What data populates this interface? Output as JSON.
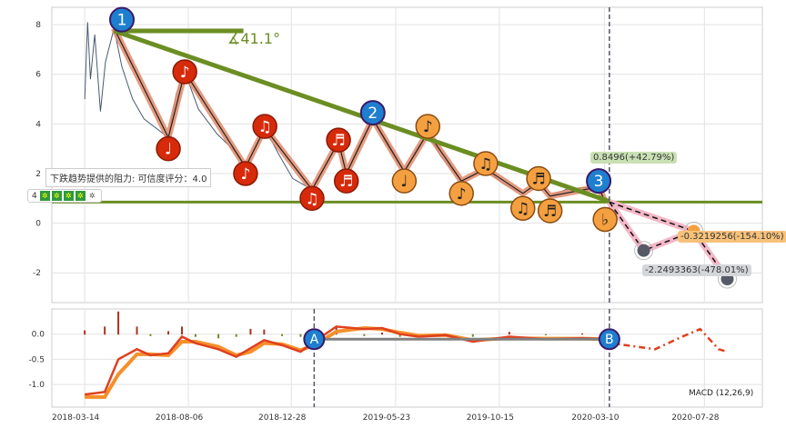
{
  "chart_data": [
    {
      "type": "line",
      "panel": "price",
      "xlim": [
        "2018-01-27",
        "2020-10-17"
      ],
      "ylim": [
        -3.2,
        8.7
      ],
      "yticks": [
        -2,
        0,
        2,
        4,
        6,
        8
      ],
      "xticks": [
        "2018-03-14",
        "2018-08-06",
        "2018-12-28",
        "2019-05-23",
        "2019-10-15",
        "2020-03-10",
        "2020-07-28"
      ],
      "grid": true,
      "colors": {
        "price": "#4a5a70",
        "wave": "#e08a6a",
        "trend": "#6b8e23",
        "red_marker": "#d62a0a",
        "orange_marker": "#f5a040",
        "number_marker": "#1e7fd0",
        "projection": "#f4b8c8"
      },
      "price": [
        [
          "2018-03-14",
          5.0
        ],
        [
          "2018-03-18",
          8.1
        ],
        [
          "2018-03-22",
          5.8
        ],
        [
          "2018-03-28",
          7.6
        ],
        [
          "2018-04-05",
          4.5
        ],
        [
          "2018-04-12",
          6.5
        ],
        [
          "2018-04-24",
          7.85
        ],
        [
          "2018-05-05",
          6.3
        ],
        [
          "2018-05-20",
          5.0
        ],
        [
          "2018-06-05",
          4.2
        ],
        [
          "2018-07-09",
          3.45
        ],
        [
          "2018-07-20",
          5.2
        ],
        [
          "2018-08-01",
          6.1
        ],
        [
          "2018-08-20",
          4.6
        ],
        [
          "2018-09-15",
          3.6
        ],
        [
          "2018-10-10",
          2.9
        ],
        [
          "2018-10-25",
          2.26
        ],
        [
          "2018-11-10",
          3.2
        ],
        [
          "2018-11-21",
          3.83
        ],
        [
          "2018-12-10",
          2.8
        ],
        [
          "2018-12-30",
          1.8
        ],
        [
          "2019-01-26",
          1.35
        ],
        [
          "2019-02-15",
          2.4
        ],
        [
          "2019-03-04",
          3.28
        ],
        [
          "2019-03-15",
          2.0
        ],
        [
          "2019-04-01",
          3.1
        ],
        [
          "2019-04-21",
          4.2
        ],
        [
          "2019-05-10",
          3.2
        ],
        [
          "2019-06-04",
          2.08
        ],
        [
          "2019-06-20",
          2.9
        ],
        [
          "2019-07-07",
          3.65
        ],
        [
          "2019-07-25",
          2.7
        ],
        [
          "2019-08-23",
          1.7
        ],
        [
          "2019-09-26",
          2.19
        ],
        [
          "2019-10-20",
          1.6
        ],
        [
          "2019-11-17",
          1.2
        ],
        [
          "2019-12-09",
          1.64
        ],
        [
          "2019-12-25",
          1.09
        ],
        [
          "2020-01-20",
          1.4
        ],
        [
          "2020-03-02",
          1.46
        ],
        [
          "2020-03-11",
          0.85
        ]
      ],
      "wave": [
        [
          "2018-04-24",
          7.85
        ],
        [
          "2018-07-09",
          3.45
        ],
        [
          "2018-08-01",
          6.1
        ],
        [
          "2018-10-25",
          2.26
        ],
        [
          "2018-11-21",
          3.83
        ],
        [
          "2019-01-26",
          1.35
        ],
        [
          "2019-03-04",
          3.28
        ],
        [
          "2019-03-15",
          2.0
        ],
        [
          "2019-04-21",
          4.2
        ],
        [
          "2019-06-04",
          2.08
        ],
        [
          "2019-07-07",
          3.65
        ],
        [
          "2019-08-23",
          1.7
        ],
        [
          "2019-09-26",
          2.19
        ],
        [
          "2019-11-17",
          1.2
        ],
        [
          "2019-12-09",
          1.64
        ],
        [
          "2019-12-25",
          1.09
        ],
        [
          "2020-03-02",
          1.46
        ],
        [
          "2020-03-11",
          0.85
        ]
      ],
      "note_markers": [
        {
          "date": "2018-07-09",
          "value": 3.0,
          "symbol": "♩",
          "color": "red"
        },
        {
          "date": "2018-08-01",
          "value": 6.1,
          "symbol": "♪",
          "color": "red"
        },
        {
          "date": "2018-10-25",
          "value": 2.0,
          "symbol": "♪",
          "color": "red"
        },
        {
          "date": "2018-11-21",
          "value": 3.9,
          "symbol": "♫",
          "color": "red"
        },
        {
          "date": "2019-01-26",
          "value": 1.0,
          "symbol": "♫",
          "color": "red"
        },
        {
          "date": "2019-03-04",
          "value": 3.35,
          "symbol": "♬",
          "color": "red"
        },
        {
          "date": "2019-03-15",
          "value": 1.7,
          "symbol": "♬",
          "color": "red"
        },
        {
          "date": "2019-06-04",
          "value": 1.7,
          "symbol": "♩",
          "color": "orange"
        },
        {
          "date": "2019-07-07",
          "value": 3.9,
          "symbol": "♪",
          "color": "orange"
        },
        {
          "date": "2019-08-23",
          "value": 1.2,
          "symbol": "♪",
          "color": "orange"
        },
        {
          "date": "2019-09-26",
          "value": 2.4,
          "symbol": "♫",
          "color": "orange"
        },
        {
          "date": "2019-11-17",
          "value": 0.6,
          "symbol": "♫",
          "color": "orange"
        },
        {
          "date": "2019-12-09",
          "value": 1.8,
          "symbol": "♬",
          "color": "orange"
        },
        {
          "date": "2019-12-25",
          "value": 0.5,
          "symbol": "♬",
          "color": "orange"
        },
        {
          "date": "2020-03-11",
          "value": 0.15,
          "symbol": "♭",
          "color": "orange"
        }
      ],
      "number_markers": [
        {
          "label": "1",
          "date": "2018-05-05",
          "value": 8.2
        },
        {
          "label": "2",
          "date": "2019-04-21",
          "value": 4.45
        },
        {
          "label": "3",
          "date": "2020-03-02",
          "value": 1.7
        }
      ],
      "trend_lines": [
        {
          "name": "resistance",
          "from": [
            "2018-04-24",
            7.75
          ],
          "to": [
            "2020-03-20",
            0.85
          ]
        },
        {
          "name": "angle-base",
          "from": [
            "2018-04-24",
            7.75
          ],
          "to": [
            "2018-10-22",
            7.75
          ]
        },
        {
          "name": "support",
          "from": [
            "2018-01-27",
            0.85
          ],
          "to": [
            "2020-10-17",
            0.85
          ]
        }
      ],
      "angle_label": "∡41.1°",
      "vline": "2020-03-17",
      "projection": [
        [
          "2020-03-17",
          0.85
        ],
        [
          "2020-05-04",
          -1.1
        ],
        [
          "2020-07-13",
          -0.32
        ],
        [
          "2020-08-29",
          -2.25
        ]
      ],
      "projection_alt": [
        [
          "2020-03-17",
          0.85
        ],
        [
          "2020-07-13",
          -0.32
        ]
      ],
      "annotations": [
        {
          "text": "0.8496(+42.79%)",
          "bg": "#c9e0b4"
        },
        {
          "text": "-0.3219256(-154.10%)",
          "bg": "#f6c27a"
        },
        {
          "text": "-2.2493363(-478.01%)",
          "bg": "#d4d6da"
        }
      ],
      "tooltip": "下跌趋势提供的阻力: 可信度评分：4.0",
      "score": {
        "value": "4",
        "filled": 4,
        "total": 5
      }
    },
    {
      "type": "line",
      "panel": "macd",
      "title": "MACD (12,26,9)",
      "ylim": [
        -1.45,
        0.5
      ],
      "yticks": [
        -1.0,
        -0.5,
        0.0
      ],
      "dif": [
        [
          "2018-03-14",
          -1.2
        ],
        [
          "2018-04-11",
          -1.15
        ],
        [
          "2018-04-30",
          -0.5
        ],
        [
          "2018-05-26",
          -0.3
        ],
        [
          "2018-06-14",
          -0.42
        ],
        [
          "2018-07-09",
          -0.38
        ],
        [
          "2018-07-28",
          -0.05
        ],
        [
          "2018-08-16",
          -0.18
        ],
        [
          "2018-09-17",
          -0.3
        ],
        [
          "2018-10-12",
          -0.45
        ],
        [
          "2018-11-01",
          -0.28
        ],
        [
          "2018-11-20",
          -0.12
        ],
        [
          "2018-12-15",
          -0.22
        ],
        [
          "2019-01-10",
          -0.35
        ],
        [
          "2019-01-29",
          -0.15
        ],
        [
          "2019-03-01",
          0.15
        ],
        [
          "2019-04-09",
          0.1
        ],
        [
          "2019-05-04",
          0.12
        ],
        [
          "2019-05-29",
          0.0
        ],
        [
          "2019-06-24",
          -0.05
        ],
        [
          "2019-08-01",
          -0.02
        ],
        [
          "2019-09-08",
          -0.15
        ],
        [
          "2019-10-29",
          -0.05
        ],
        [
          "2019-12-19",
          -0.1
        ],
        [
          "2020-02-08",
          -0.08
        ],
        [
          "2020-03-17",
          -0.1
        ]
      ],
      "dea": [
        [
          "2018-03-14",
          -1.25
        ],
        [
          "2018-04-11",
          -1.25
        ],
        [
          "2018-04-30",
          -0.8
        ],
        [
          "2018-05-26",
          -0.4
        ],
        [
          "2018-06-14",
          -0.4
        ],
        [
          "2018-07-09",
          -0.42
        ],
        [
          "2018-07-28",
          -0.15
        ],
        [
          "2018-08-16",
          -0.15
        ],
        [
          "2018-09-17",
          -0.25
        ],
        [
          "2018-10-12",
          -0.42
        ],
        [
          "2018-11-01",
          -0.35
        ],
        [
          "2018-11-20",
          -0.18
        ],
        [
          "2018-12-15",
          -0.2
        ],
        [
          "2019-01-10",
          -0.32
        ],
        [
          "2019-01-29",
          -0.22
        ],
        [
          "2019-03-01",
          0.05
        ],
        [
          "2019-04-09",
          0.12
        ],
        [
          "2019-05-04",
          0.1
        ],
        [
          "2019-05-29",
          0.03
        ],
        [
          "2019-06-24",
          -0.03
        ],
        [
          "2019-08-01",
          -0.02
        ],
        [
          "2019-09-08",
          -0.12
        ],
        [
          "2019-10-29",
          -0.08
        ],
        [
          "2019-12-19",
          -0.09
        ],
        [
          "2020-02-08",
          -0.09
        ],
        [
          "2020-03-17",
          -0.1
        ]
      ],
      "forecast": [
        [
          "2020-03-30",
          -0.2
        ],
        [
          "2020-05-20",
          -0.3
        ],
        [
          "2020-06-27",
          -0.05
        ],
        [
          "2020-07-22",
          0.1
        ],
        [
          "2020-08-17",
          -0.3
        ],
        [
          "2020-08-29",
          -0.35
        ]
      ],
      "flat_line": {
        "from": "2019-01-29",
        "to": "2020-03-17",
        "value": -0.1
      },
      "markers": [
        {
          "label": "A",
          "date": "2019-01-29"
        },
        {
          "label": "B",
          "date": "2020-03-17"
        }
      ],
      "colors": {
        "dif": "#e04020",
        "dea": "#f5902a",
        "flat": "#808080",
        "marker": "#1e7fd0"
      }
    }
  ]
}
